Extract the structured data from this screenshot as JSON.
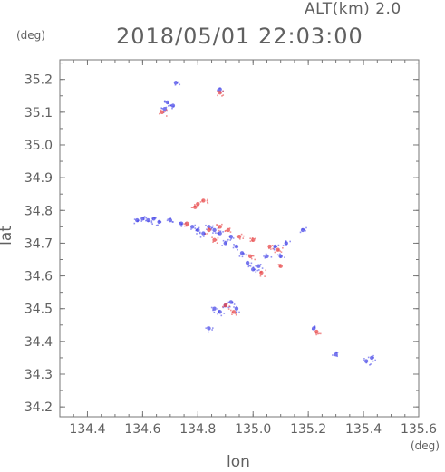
{
  "header": {
    "alt_label": "ALT(km) 2.0",
    "datetime": "2018/05/01 22:03:00",
    "y_unit": "(deg)",
    "x_unit": "(deg)"
  },
  "chart_data": {
    "type": "scatter",
    "title": "2018/05/01 22:03:00",
    "xlabel": "lon",
    "ylabel": "lat",
    "xlim": [
      134.3,
      135.6
    ],
    "ylim": [
      34.17,
      35.26
    ],
    "x_ticks": [
      "134.4",
      "134.6",
      "134.8",
      "135.0",
      "135.2",
      "135.4",
      "135.6"
    ],
    "y_ticks": [
      "34.2",
      "34.3",
      "34.4",
      "34.5",
      "34.6",
      "34.7",
      "34.8",
      "34.9",
      "35.0",
      "35.1",
      "35.2"
    ],
    "grid": false,
    "colors": {
      "positive": "#e8484a",
      "negative": "#4a4ae8",
      "axis": "#777777"
    },
    "series": [
      {
        "color": "negative",
        "points": [
          [
            134.58,
            34.77
          ],
          [
            134.6,
            34.775
          ],
          [
            134.62,
            34.77
          ],
          [
            134.64,
            34.775
          ],
          [
            134.66,
            34.765
          ],
          [
            134.7,
            34.77
          ],
          [
            134.74,
            34.76
          ],
          [
            134.78,
            34.75
          ],
          [
            134.8,
            34.74
          ],
          [
            134.82,
            34.73
          ],
          [
            134.84,
            34.75
          ],
          [
            134.86,
            34.74
          ],
          [
            134.88,
            34.73
          ],
          [
            134.9,
            34.7
          ],
          [
            134.92,
            34.72
          ],
          [
            134.94,
            34.69
          ],
          [
            134.96,
            34.67
          ],
          [
            134.98,
            34.64
          ],
          [
            135.0,
            34.62
          ],
          [
            135.02,
            34.63
          ],
          [
            135.05,
            34.66
          ],
          [
            135.08,
            34.69
          ],
          [
            135.1,
            34.66
          ],
          [
            135.12,
            34.7
          ],
          [
            135.18,
            34.74
          ],
          [
            134.86,
            34.5
          ],
          [
            134.88,
            34.49
          ],
          [
            134.9,
            34.51
          ],
          [
            134.92,
            34.52
          ],
          [
            134.94,
            34.5
          ],
          [
            134.84,
            34.44
          ],
          [
            135.22,
            34.44
          ],
          [
            135.3,
            34.36
          ],
          [
            135.41,
            34.34
          ],
          [
            135.43,
            34.35
          ],
          [
            134.68,
            35.11
          ],
          [
            134.69,
            35.13
          ],
          [
            134.71,
            35.12
          ],
          [
            134.72,
            35.19
          ],
          [
            134.88,
            35.17
          ]
        ]
      },
      {
        "color": "positive",
        "points": [
          [
            134.79,
            34.81
          ],
          [
            134.8,
            34.82
          ],
          [
            134.82,
            34.83
          ],
          [
            134.76,
            34.76
          ],
          [
            134.84,
            34.74
          ],
          [
            134.86,
            34.71
          ],
          [
            134.88,
            34.75
          ],
          [
            134.91,
            34.74
          ],
          [
            134.95,
            34.72
          ],
          [
            134.99,
            34.66
          ],
          [
            135.03,
            34.61
          ],
          [
            135.06,
            34.69
          ],
          [
            135.09,
            34.68
          ],
          [
            135.1,
            34.63
          ],
          [
            135.0,
            34.71
          ],
          [
            134.9,
            34.51
          ],
          [
            134.93,
            34.49
          ],
          [
            135.23,
            34.43
          ],
          [
            134.67,
            35.1
          ],
          [
            134.88,
            35.16
          ]
        ]
      }
    ]
  }
}
